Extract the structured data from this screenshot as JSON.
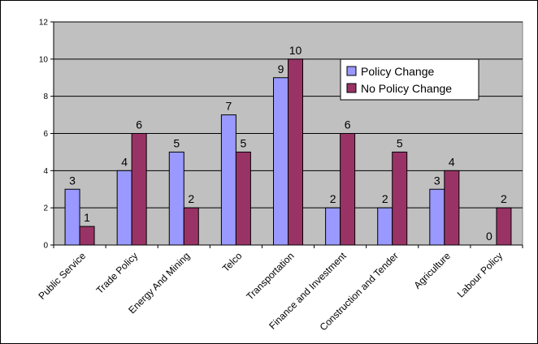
{
  "chart_data": {
    "type": "bar",
    "categories": [
      "Public Service",
      "Trade Policy",
      "Energy And Mining",
      "Telco",
      "Transportation",
      "Finance and Investment",
      "Construction and Tender",
      "Agriculture",
      "Labour Policy"
    ],
    "series": [
      {
        "name": "Policy Change",
        "values": [
          3,
          4,
          5,
          7,
          9,
          2,
          2,
          3,
          0
        ],
        "color": "#9999ff"
      },
      {
        "name": "No Policy Change",
        "values": [
          1,
          6,
          2,
          5,
          10,
          6,
          5,
          4,
          2
        ],
        "color": "#993366"
      }
    ],
    "ylim": [
      0,
      12
    ],
    "yticks": [
      0,
      2,
      4,
      6,
      8,
      10,
      12
    ],
    "grid": true,
    "legend_position": "top-right",
    "plot_background": "#c0c0c0"
  }
}
